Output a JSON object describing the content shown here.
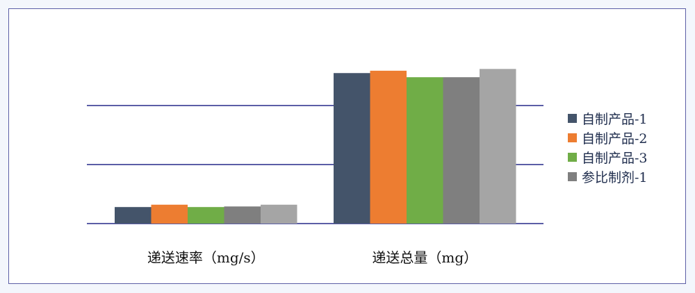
{
  "chart_data": {
    "type": "bar",
    "categories": [
      "递送速率（mg/s）",
      "递送总量（mg）"
    ],
    "series": [
      {
        "name": "自制产品-1",
        "values": [
          0.28,
          2.55
        ],
        "color": "#44546a"
      },
      {
        "name": "自制产品-2",
        "values": [
          0.32,
          2.59
        ],
        "color": "#ed7d31"
      },
      {
        "name": "自制产品-3",
        "values": [
          0.28,
          2.48
        ],
        "color": "#70ad47"
      },
      {
        "name": "参比制剂-1",
        "values": [
          0.29,
          2.48
        ],
        "color": "#7f7f7f"
      },
      {
        "values": [
          0.32,
          2.62
        ],
        "color": "#a5a5a5"
      }
    ],
    "ylim": [
      0,
      3
    ],
    "gridlines": [
      0,
      1,
      2
    ],
    "grid": true,
    "grid_color": "#5b5ea6",
    "legend_placement": "right",
    "title": "",
    "xlabel": "",
    "ylabel": ""
  }
}
